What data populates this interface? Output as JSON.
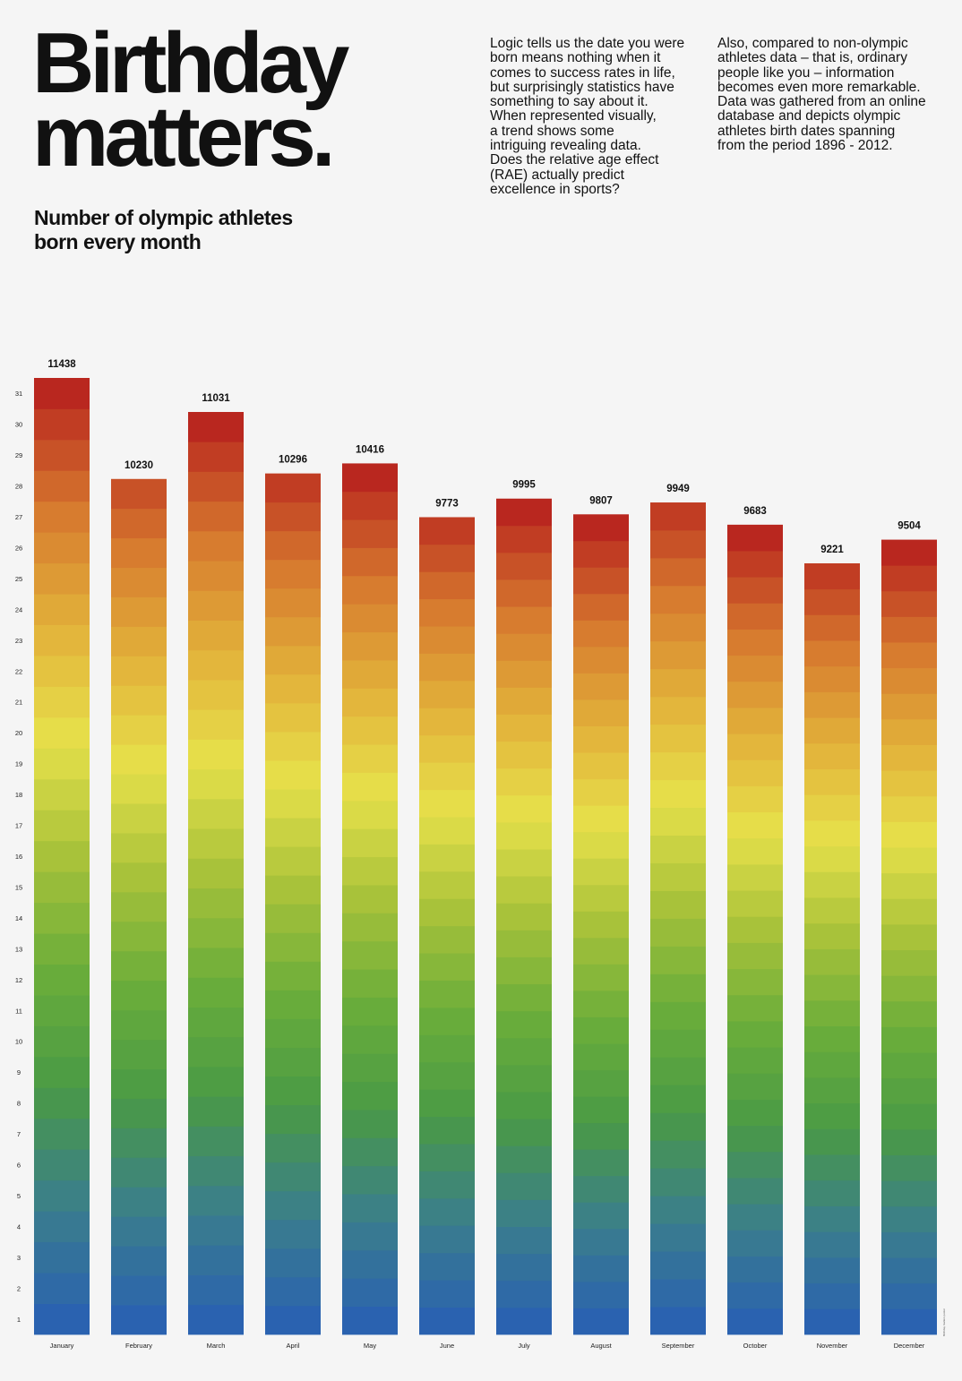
{
  "header": {
    "title_lines": [
      "Birthday",
      "matters."
    ],
    "subtitle_lines": [
      "Number of olympic athletes",
      "born every month"
    ]
  },
  "intro": {
    "paragraph1_lines": [
      "Logic tells us the date you were",
      "born means nothing when it",
      "comes to success rates in life,",
      "but surprisingly statistics have",
      "something to say about it.",
      "When represented visually,",
      "a trend shows some",
      "intriguing revealing data.",
      "Does the relative age effect",
      "(RAE) actually predict",
      "excellence in sports?"
    ],
    "paragraph2_lines": [
      "Also, compared to non-olympic",
      "athletes data – that is, ordinary",
      "people like you – information",
      "becomes even more remarkable.",
      "Data was gathered from an online",
      "database and depicts olympic",
      "athletes birth dates spanning",
      "from the period 1896 - 2012."
    ]
  },
  "chart_data": {
    "type": "bar",
    "categories": [
      "January",
      "February",
      "March",
      "April",
      "May",
      "June",
      "July",
      "August",
      "September",
      "October",
      "November",
      "December"
    ],
    "values": [
      11438,
      10230,
      11031,
      10296,
      10416,
      9773,
      9995,
      9807,
      9949,
      9683,
      9221,
      9504
    ],
    "day_axis_labels": [
      "1",
      "2",
      "3",
      "4",
      "5",
      "6",
      "7",
      "8",
      "9",
      "10",
      "11",
      "12",
      "13",
      "14",
      "15",
      "16",
      "17",
      "18",
      "19",
      "20",
      "21",
      "22",
      "23",
      "24",
      "25",
      "26",
      "27",
      "28",
      "29",
      "30",
      "31"
    ],
    "segments": "each bar is stacked by day of birth, 1 at the bottom to 31 at the top",
    "days_in_month": [
      31,
      29,
      31,
      30,
      31,
      30,
      31,
      31,
      30,
      31,
      30,
      31
    ],
    "ylim": [
      0,
      11438
    ],
    "grid": false,
    "legend": "none",
    "colors": {
      "day_gradient": [
        "#2a62b0",
        "#3b7f8a",
        "#4a9a45",
        "#6aad3a",
        "#a8c23a",
        "#e6e04a",
        "#e2b03a",
        "#d6782e",
        "#b9271f"
      ]
    }
  },
  "credit": "Birthday matters poster"
}
